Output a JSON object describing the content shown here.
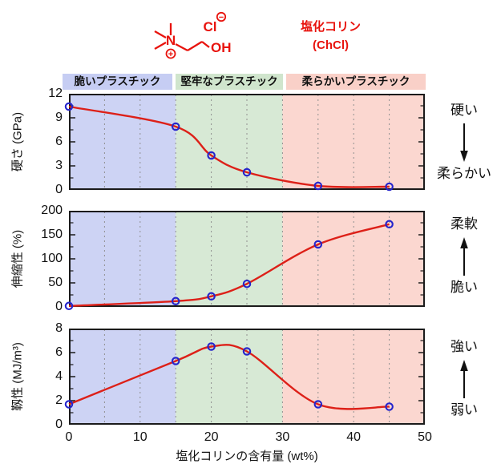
{
  "style": {
    "curve_color": "#dd2018",
    "marker_color": "#2424cc",
    "grid_color": "#909090",
    "frame_color": "#1b1b1b",
    "structure_color": "#e8130d"
  },
  "molecule": {
    "atoms": {
      "cl": "Cl",
      "minus": "−",
      "oh": "OH",
      "n": "N",
      "plus": "+"
    },
    "name_line1": "塩化コリン",
    "name_line2": "(ChCl)"
  },
  "regions": [
    {
      "label": "脆いプラスチック",
      "range": [
        0,
        15
      ],
      "fill": "#cdd3f4",
      "label_bg": "#c6cdf3"
    },
    {
      "label": "堅牢なプラスチック",
      "range": [
        15,
        30
      ],
      "fill": "#d7e9d5",
      "label_bg": "#d0e5cd"
    },
    {
      "label": "柔らかいプラスチック",
      "range": [
        30,
        50
      ],
      "fill": "#fbd7d0",
      "label_bg": "#f9d0c8"
    }
  ],
  "x_axis": {
    "title": "塩化コリンの含有量 (wt%)",
    "lim": [
      0,
      50
    ],
    "ticks": [
      0,
      10,
      20,
      30,
      40,
      50
    ],
    "gridlines": [
      5,
      10,
      15,
      20,
      25,
      30,
      35,
      40,
      45
    ]
  },
  "chart_data": [
    {
      "type": "line",
      "ylabel": "硬さ (GPa)",
      "ylim": [
        0,
        12
      ],
      "yticks": [
        0,
        3,
        6,
        9,
        12
      ],
      "x": [
        0,
        15,
        20,
        25,
        35,
        45
      ],
      "y": [
        10.4,
        7.9,
        4.3,
        2.2,
        0.5,
        0.4
      ],
      "annotations": {
        "top": "硬い",
        "bottom": "柔らかい",
        "arrow": "down"
      }
    },
    {
      "type": "line",
      "ylabel": "伸縮性 (%)",
      "ylim": [
        0,
        200
      ],
      "yticks": [
        0,
        50,
        100,
        150,
        200
      ],
      "x": [
        0,
        15,
        20,
        25,
        35,
        45
      ],
      "y": [
        2,
        12,
        22,
        48,
        130,
        172
      ],
      "annotations": {
        "top": "柔軟",
        "bottom": "脆い",
        "arrow": "up"
      }
    },
    {
      "type": "line",
      "ylabel": "靱性 (MJ/m³)",
      "ylim": [
        0,
        8
      ],
      "yticks": [
        0,
        2,
        4,
        6,
        8
      ],
      "x": [
        0,
        15,
        20,
        25,
        35,
        45
      ],
      "y": [
        1.7,
        5.3,
        6.5,
        6.1,
        1.7,
        1.5
      ],
      "annotations": {
        "top": "強い",
        "bottom": "弱い",
        "arrow": "up"
      }
    }
  ]
}
